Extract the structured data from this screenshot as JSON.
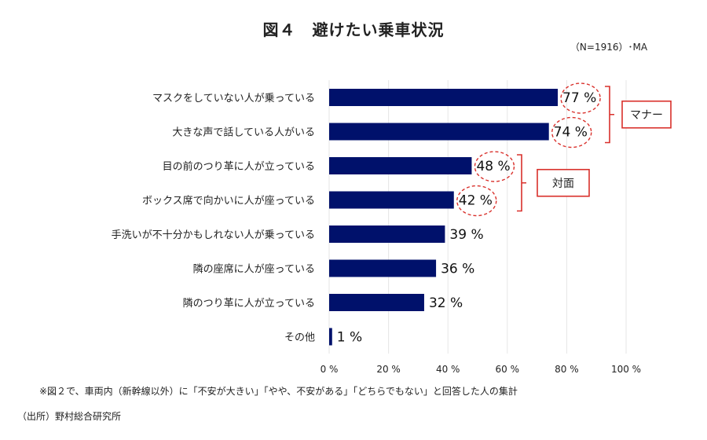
{
  "chart_data": {
    "type": "bar",
    "orientation": "horizontal",
    "title": "図４　避けたい乗車状況",
    "sample_note": "（N=1916）･MA",
    "categories": [
      "マスクをしていない人が乗っている",
      "大きな声で話している人がいる",
      "目の前のつり革に人が立っている",
      "ボックス席で向かいに人が座っている",
      "手洗いが不十分かもしれない人が乗っている",
      "隣の座席に人が座っている",
      "隣のつり革に人が立っている",
      "その他"
    ],
    "values": [
      77,
      74,
      48,
      42,
      39,
      36,
      32,
      1
    ],
    "value_labels": [
      "77 %",
      "74 %",
      "48 %",
      "42 %",
      "39 %",
      "36 %",
      "32 %",
      "1 %"
    ],
    "highlighted": [
      0,
      1,
      2,
      3
    ],
    "xlim": [
      0,
      100
    ],
    "xticks": [
      0,
      20,
      40,
      60,
      80,
      100
    ],
    "xtick_labels": [
      "0 %",
      "20 %",
      "40 %",
      "60 %",
      "80 %",
      "100 %"
    ],
    "grid": true,
    "colors": {
      "bar": "#00116b",
      "annotation": "#d9302b"
    },
    "groups": [
      {
        "label": "マナー",
        "from": 0,
        "to": 1
      },
      {
        "label": "対面",
        "from": 2,
        "to": 3
      }
    ]
  },
  "footnote": "※図２で、車両内（新幹線以外）に「不安が大きい」「やや、不安がある」「どちらでもない」と回答した人の集計",
  "source": "（出所）野村総合研究所"
}
